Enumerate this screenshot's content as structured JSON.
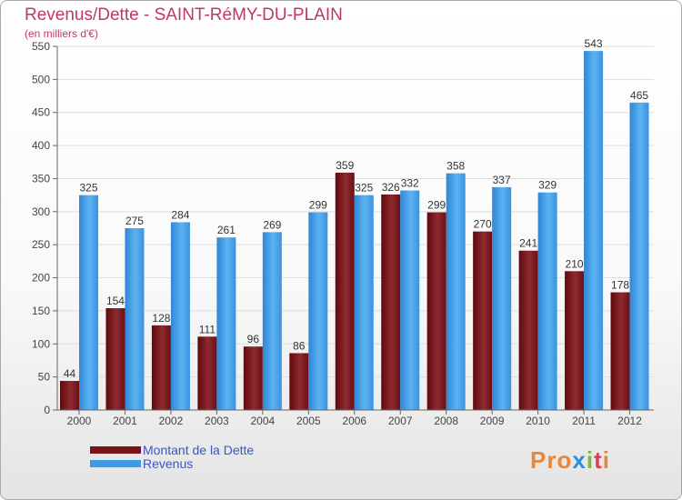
{
  "chart_data": {
    "type": "bar",
    "title": "Revenus/Dette - SAINT-RéMY-DU-PLAIN",
    "subtitle": "(en milliers d'€)",
    "categories": [
      "2000",
      "2001",
      "2002",
      "2003",
      "2004",
      "2005",
      "2006",
      "2007",
      "2008",
      "2009",
      "2010",
      "2011",
      "2012"
    ],
    "series": [
      {
        "name": "Montant de la Dette",
        "color": "#7a1418",
        "values": [
          44,
          154,
          128,
          111,
          96,
          86,
          359,
          326,
          299,
          270,
          241,
          210,
          178
        ]
      },
      {
        "name": "Revenus",
        "color": "#3d9be5",
        "values": [
          325,
          275,
          284,
          261,
          269,
          299,
          325,
          332,
          358,
          337,
          329,
          543,
          465
        ]
      }
    ],
    "ylim": [
      0,
      550
    ],
    "yticks": [
      0,
      50,
      100,
      150,
      200,
      250,
      300,
      350,
      400,
      450,
      500,
      550
    ],
    "grid": true,
    "legend": "bottom-left"
  },
  "logo": {
    "text": "Proxiti"
  }
}
